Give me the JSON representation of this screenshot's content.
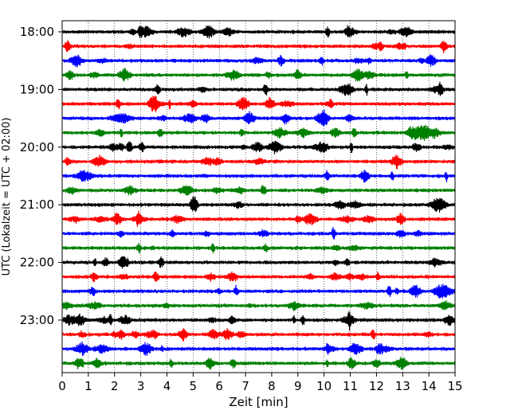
{
  "chart_data": {
    "type": "line",
    "title": "",
    "xlabel": "Zeit  [min]",
    "ylabel": "UTC (Lokalzeit = UTC + 02:00)",
    "xlim": [
      0,
      15
    ],
    "x_ticks": [
      "0",
      "1",
      "2",
      "3",
      "4",
      "5",
      "6",
      "7",
      "8",
      "9",
      "10",
      "11",
      "12",
      "13",
      "14",
      "15"
    ],
    "y_tick_labels": [
      "18:00",
      "19:00",
      "20:00",
      "21:00",
      "22:00",
      "23:00"
    ],
    "grid": "vertical dotted",
    "trace_interval_minutes": 15,
    "series_colors": [
      "#000000",
      "#ff0000",
      "#0000ff",
      "#008000"
    ],
    "traces": [
      {
        "start": "18:00",
        "color": "#000000"
      },
      {
        "start": "18:15",
        "color": "#ff0000"
      },
      {
        "start": "18:30",
        "color": "#0000ff"
      },
      {
        "start": "18:45",
        "color": "#008000"
      },
      {
        "start": "19:00",
        "color": "#000000"
      },
      {
        "start": "19:15",
        "color": "#ff0000"
      },
      {
        "start": "19:30",
        "color": "#0000ff"
      },
      {
        "start": "19:45",
        "color": "#008000"
      },
      {
        "start": "20:00",
        "color": "#000000"
      },
      {
        "start": "20:15",
        "color": "#ff0000"
      },
      {
        "start": "20:30",
        "color": "#0000ff"
      },
      {
        "start": "20:45",
        "color": "#008000"
      },
      {
        "start": "21:00",
        "color": "#000000"
      },
      {
        "start": "21:15",
        "color": "#ff0000"
      },
      {
        "start": "21:30",
        "color": "#0000ff"
      },
      {
        "start": "21:45",
        "color": "#008000"
      },
      {
        "start": "22:00",
        "color": "#000000"
      },
      {
        "start": "22:15",
        "color": "#ff0000"
      },
      {
        "start": "22:30",
        "color": "#0000ff"
      },
      {
        "start": "22:45",
        "color": "#008000"
      },
      {
        "start": "23:00",
        "color": "#000000"
      },
      {
        "start": "23:15",
        "color": "#ff0000"
      },
      {
        "start": "23:30",
        "color": "#0000ff"
      },
      {
        "start": "23:45",
        "color": "#008000"
      }
    ]
  }
}
